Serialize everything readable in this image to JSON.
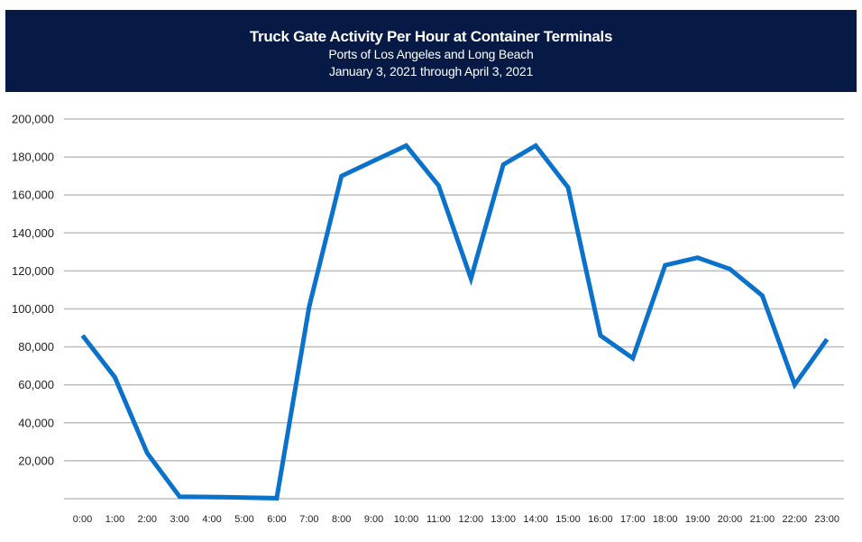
{
  "header": {
    "title": "Truck Gate Activity Per Hour at Container Terminals",
    "subtitle": "Ports of Los Angeles and Long Beach",
    "date_range": "January 3, 2021 through April 3, 2021"
  },
  "colors": {
    "header_bg": "#061a45",
    "line": "#0b72cc",
    "grid": "#bdbdbd"
  },
  "chart_data": {
    "type": "line",
    "title": "Truck Gate Activity Per Hour at Container Terminals",
    "subtitle": "Ports of Los Angeles and Long Beach; January 3, 2021 through April 3, 2021",
    "xlabel": "",
    "ylabel": "",
    "ylim": [
      0,
      200000
    ],
    "grid": true,
    "legend": "none",
    "categories": [
      "0:00",
      "1:00",
      "2:00",
      "3:00",
      "4:00",
      "5:00",
      "6:00",
      "7:00",
      "8:00",
      "9:00",
      "10:00",
      "11:00",
      "12:00",
      "13:00",
      "14:00",
      "15:00",
      "16:00",
      "17:00",
      "18:00",
      "19:00",
      "20:00",
      "21:00",
      "22:00",
      "23:00"
    ],
    "yticks": [
      0,
      20000,
      40000,
      60000,
      80000,
      100000,
      120000,
      140000,
      160000,
      180000,
      200000
    ],
    "ytick_labels": [
      "",
      "20,000",
      "40,000",
      "60,000",
      "80,000",
      "100,000",
      "120,000",
      "140,000",
      "160,000",
      "180,000",
      "200,000"
    ],
    "series": [
      {
        "name": "Truck Gate Activity",
        "values": [
          86000,
          64000,
          24000,
          1100,
          900,
          600,
          300,
          101000,
          170000,
          178000,
          186000,
          165000,
          116000,
          176000,
          186000,
          164000,
          86000,
          74000,
          123000,
          127000,
          121000,
          107000,
          60000,
          84000
        ]
      }
    ]
  }
}
